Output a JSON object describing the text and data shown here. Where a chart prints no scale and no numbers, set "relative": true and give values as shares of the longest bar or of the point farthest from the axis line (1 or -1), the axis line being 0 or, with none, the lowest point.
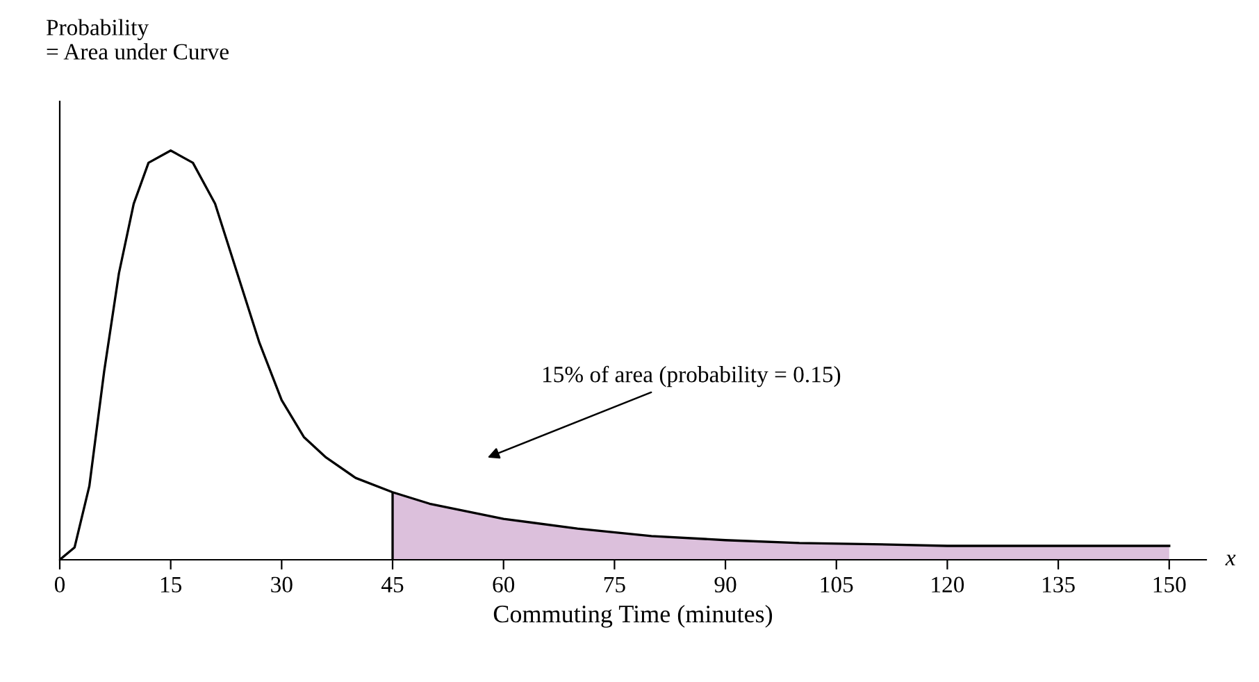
{
  "chart_data": {
    "type": "line",
    "relative": true,
    "xlabel": "Commuting Time (minutes)",
    "ylabel": "Probability\n= Area under Curve",
    "xlim": [
      0,
      155
    ],
    "xticks": [
      0,
      15,
      30,
      45,
      60,
      75,
      90,
      105,
      120,
      135,
      150
    ],
    "grid": false,
    "legend": false,
    "series": [
      {
        "color": "#000000",
        "x": [
          0,
          2,
          4,
          6,
          8,
          10,
          12,
          15,
          18,
          21,
          24,
          27,
          30,
          33,
          36,
          40,
          45,
          50,
          60,
          70,
          80,
          90,
          100,
          110,
          120,
          135,
          150
        ],
        "values": [
          0,
          0.03,
          0.18,
          0.46,
          0.7,
          0.87,
          0.97,
          1.0,
          0.97,
          0.87,
          0.7,
          0.53,
          0.39,
          0.3,
          0.25,
          0.2,
          0.165,
          0.137,
          0.1,
          0.076,
          0.058,
          0.048,
          0.041,
          0.038,
          0.034,
          0.034,
          0.034
        ]
      },
      {
        "type": "area",
        "color": "#dcc0dc",
        "x": [
          45,
          50,
          60,
          70,
          80,
          90,
          100,
          110,
          120,
          135,
          150
        ],
        "values": [
          0.165,
          0.137,
          0.1,
          0.076,
          0.058,
          0.048,
          0.041,
          0.038,
          0.034,
          0.034,
          0.034
        ]
      }
    ],
    "ref_lines": [
      {
        "axis": "x",
        "value": 45,
        "color": "#000000"
      }
    ],
    "annotations": [
      "15% of area (probability = 0.15)",
      "x"
    ]
  }
}
